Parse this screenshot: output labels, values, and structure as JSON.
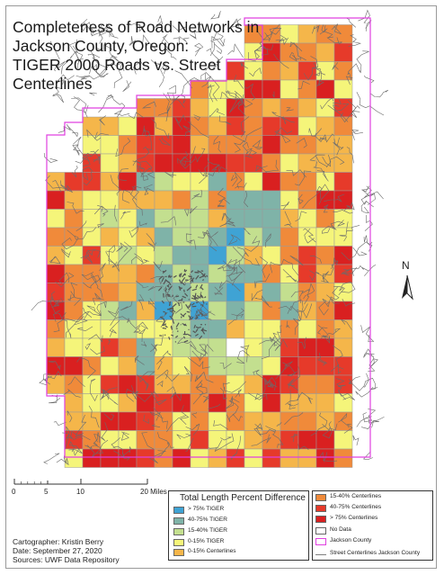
{
  "title_lines": [
    "Completeness of Road Networks in",
    "Jackson County, Oregon:",
    "TIGER 2000 Roads vs. Street",
    "Centerlines"
  ],
  "north_label": "N",
  "scale": {
    "ticks": [
      "0",
      "5",
      "10",
      "20 Miles"
    ]
  },
  "legend": {
    "title": "Total Length Percent Difference",
    "col1": [
      {
        "label": "> 75% TIGER",
        "color": "#3fa3d4"
      },
      {
        "label": "40-75% TIGER",
        "color": "#7fb3a8"
      },
      {
        "label": "15-40% TIGER",
        "color": "#c3df8f"
      },
      {
        "label": "0-15% TIGER",
        "color": "#f5f57a"
      },
      {
        "label": "0-15% Centerlines",
        "color": "#f5b64a"
      }
    ],
    "col2": [
      {
        "label": "15-40% Centerlines",
        "color": "#f08a3a"
      },
      {
        "label": "40-75% Centerlines",
        "color": "#e63a2a"
      },
      {
        "label": "> 75% Centerlines",
        "color": "#d92020"
      },
      {
        "label": "No Data",
        "color": "#ffffff"
      },
      {
        "label": "Jackson County",
        "color": "#e040e0"
      },
      {
        "label": "Street Centerlines Jackson County",
        "color": "#808080"
      }
    ]
  },
  "credits": {
    "cartographer": "Cartographer: Kristin Berry",
    "date": "Date: September 27, 2020",
    "sources": "Sources: UWF Data Repository"
  },
  "colors": {
    "county_boundary": "#e040e0",
    "roads": "#6b6b6b",
    "grid_line": "#9a9a9a"
  }
}
